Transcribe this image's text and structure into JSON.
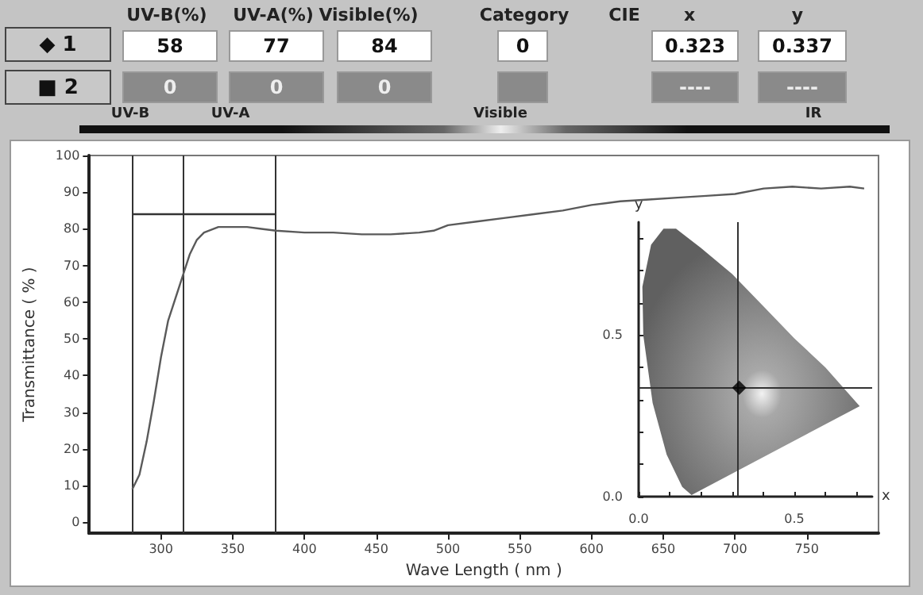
{
  "chart_data": [
    {
      "type": "other",
      "annotations": [
        "UV-B(%)",
        "UV-A(%)",
        "Visible(%)",
        "Category",
        "CIE",
        "x",
        "y",
        "◆ 1",
        "58",
        "77",
        "84",
        "0",
        "0.323",
        "0.337",
        "■ 2",
        "0",
        "0",
        "0",
        "----",
        "----",
        "UV-B",
        "UV-A",
        "Visible",
        "IR"
      ]
    },
    {
      "type": "line",
      "xlabel": "Wave Length ( nm )",
      "ylabel": "Transmittance ( % )",
      "x": [
        280,
        285,
        290,
        295,
        300,
        305,
        310,
        315,
        320,
        325,
        330,
        340,
        350,
        360,
        370,
        380,
        400,
        420,
        440,
        460,
        480,
        490,
        500,
        520,
        540,
        560,
        580,
        600,
        620,
        640,
        660,
        680,
        700,
        720,
        740,
        760,
        780,
        790
      ],
      "series": [
        {
          "color": "#5a5a5a",
          "values": [
            9,
            13,
            22,
            33,
            45,
            55,
            61,
            67,
            73,
            77,
            79,
            80.5,
            80.5,
            80.5,
            80,
            79.5,
            79,
            79,
            78.5,
            78.5,
            79,
            79.5,
            81,
            82,
            83,
            84,
            85,
            86.5,
            87.5,
            88,
            88.5,
            89,
            89.5,
            91,
            91.5,
            91,
            91.5,
            91
          ]
        },
        {
          "type": "line",
          "x": [
            280,
            380
          ],
          "values": [
            84,
            84
          ],
          "color": "#333333"
        }
      ],
      "xlim": [
        250,
        800
      ],
      "ylim": [
        -3,
        100
      ],
      "xticks": [
        300,
        350,
        400,
        450,
        500,
        550,
        600,
        650,
        700,
        750
      ],
      "yticks": [
        0,
        10,
        20,
        30,
        40,
        50,
        60,
        70,
        80,
        90,
        100
      ],
      "ref_lines": [
        {
          "axis": "x",
          "value": 280,
          "color": "#333333"
        },
        {
          "axis": "x",
          "value": 315,
          "color": "#333333"
        },
        {
          "axis": "x",
          "value": 380,
          "color": "#333333"
        }
      ],
      "marker": "none"
    },
    {
      "type": "scatter",
      "xlabel": "x",
      "ylabel": "y",
      "series": [
        {
          "type": "area",
          "x": [
            0.17,
            0.14,
            0.09,
            0.045,
            0.015,
            0.012,
            0.04,
            0.08,
            0.12,
            0.2,
            0.3,
            0.4,
            0.5,
            0.6,
            0.71
          ],
          "values": [
            0.005,
            0.03,
            0.13,
            0.29,
            0.5,
            0.65,
            0.78,
            0.83,
            0.83,
            0.77,
            0.69,
            0.59,
            0.49,
            0.4,
            0.28
          ],
          "color": "#606060"
        },
        {
          "type": "scatter",
          "x": [
            0.323
          ],
          "values": [
            0.337
          ],
          "color": "#000000",
          "marker": "diamond"
        }
      ],
      "xlim": [
        0,
        0.75
      ],
      "ylim": [
        0,
        0.85
      ],
      "xticks": [
        {
          "value": 0,
          "label": "0.0"
        },
        {
          "value": 0.1,
          "label": null
        },
        {
          "value": 0.2,
          "label": null
        },
        {
          "value": 0.3,
          "label": null
        },
        {
          "value": 0.4,
          "label": null
        },
        {
          "value": 0.5,
          "label": "0.5"
        },
        {
          "value": 0.6,
          "label": null
        },
        {
          "value": 0.7,
          "label": null
        }
      ],
      "yticks": [
        {
          "value": 0,
          "label": "0.0"
        },
        {
          "value": 0.1,
          "label": null
        },
        {
          "value": 0.2,
          "label": null
        },
        {
          "value": 0.3,
          "label": null
        },
        {
          "value": 0.4,
          "label": null
        },
        {
          "value": 0.5,
          "label": "0.5"
        },
        {
          "value": 0.6,
          "label": null
        },
        {
          "value": 0.7,
          "label": null
        },
        {
          "value": 0.8,
          "label": null
        }
      ],
      "ref_lines": [
        {
          "axis": "x",
          "value": 0.323,
          "color": "#333333"
        },
        {
          "axis": "y",
          "value": 0.337,
          "color": "#333333"
        }
      ]
    }
  ]
}
